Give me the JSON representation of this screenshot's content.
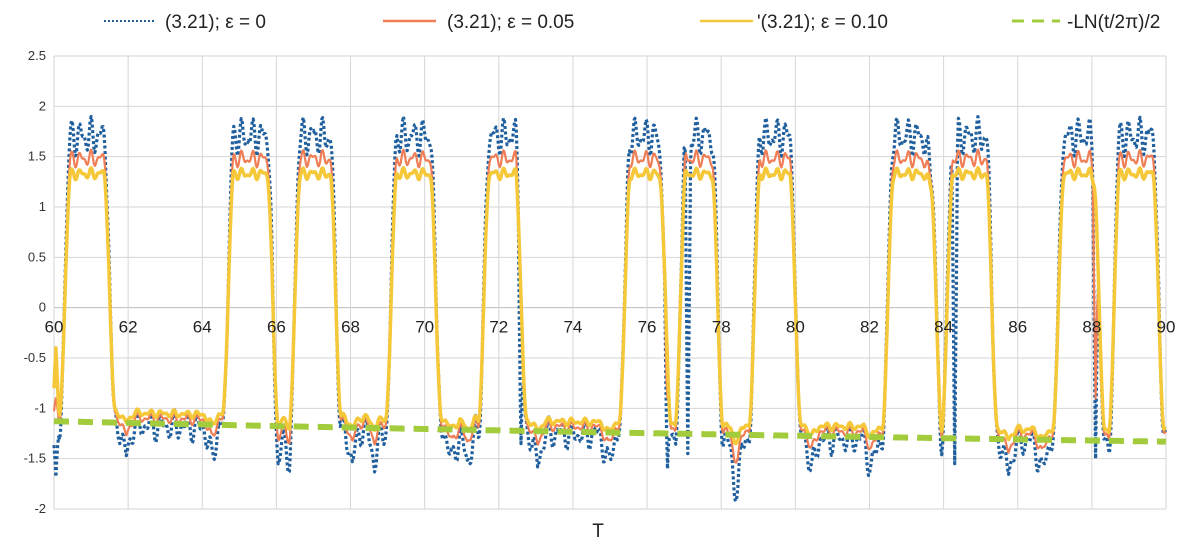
{
  "chart_data": {
    "type": "line",
    "xlabel": "T",
    "ylabel": "",
    "xlim": [
      60,
      90
    ],
    "ylim": [
      -2,
      2.5
    ],
    "grid": true,
    "legend_position": "top",
    "x_ticks": [
      "60",
      "62",
      "64",
      "66",
      "68",
      "70",
      "72",
      "74",
      "76",
      "78",
      "80",
      "82",
      "84",
      "86",
      "88",
      "90"
    ],
    "y_ticks": [
      "2.5",
      "2",
      "1.5",
      "1",
      "0.5",
      "0",
      "-0.5",
      "-1",
      "-1.5",
      "-2"
    ],
    "high_intervals": [
      [
        60.3,
        61.5
      ],
      [
        64.7,
        65.9
      ],
      [
        66.5,
        67.6
      ],
      [
        69.1,
        70.3
      ],
      [
        71.6,
        72.6
      ],
      [
        75.4,
        76.5
      ],
      [
        76.9,
        77.9
      ],
      [
        78.9,
        80.0
      ],
      [
        82.5,
        83.8
      ],
      [
        84.1,
        85.3
      ],
      [
        87.1,
        88.2
      ],
      [
        88.6,
        89.8
      ]
    ],
    "series": [
      {
        "name": "(3.21); ε = 0",
        "color": "#1f5f9e",
        "dash": "dotted",
        "high_level": 1.7,
        "high_ripple": 0.2,
        "low_ripple": 0.17,
        "low_offset": -0.02,
        "dip_depth": 0.32,
        "spikes": [
          [
            60.05,
            -1.68
          ],
          [
            76.55,
            -1.6
          ],
          [
            77.1,
            -1.45
          ],
          [
            84.3,
            -1.55
          ],
          [
            88.1,
            -1.5
          ],
          [
            72.6,
            -1.35
          ]
        ]
      },
      {
        "name": "(3.21); ε = 0.05",
        "color": "#ef7d55",
        "dash": "solid",
        "high_level": 1.48,
        "high_ripple": 0.09,
        "low_ripple": 0.06,
        "low_offset": 0.05,
        "dip_depth": 0.18,
        "spikes": [
          [
            60.05,
            -0.9
          ],
          [
            76.55,
            -0.9
          ],
          [
            88.1,
            -0.9
          ]
        ]
      },
      {
        "name": "'(3.21); ε = 0.10",
        "color": "#f5c83a",
        "dash": "solid",
        "high_level": 1.33,
        "high_ripple": 0.06,
        "low_ripple": 0.04,
        "low_offset": 0.1,
        "dip_depth": 0.1,
        "spikes": [
          [
            60.05,
            -0.4
          ]
        ]
      },
      {
        "name": "-LN(t/2π)/2",
        "color": "#a3cc3c",
        "dash": "dashed",
        "formula": "-ln(t/(2*pi))/2"
      }
    ]
  }
}
